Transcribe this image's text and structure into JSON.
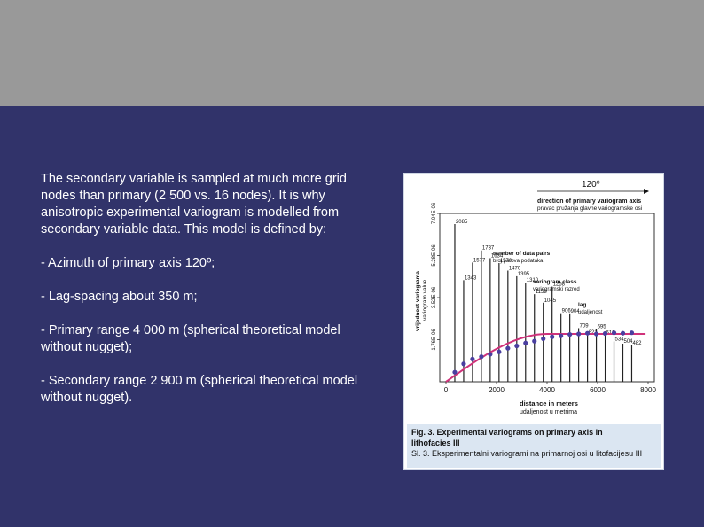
{
  "slide": {
    "intro": "The secondary variable is sampled at much more grid nodes than primary (2 500 vs. 16 nodes). It is why anisotropic experimental variogram is modelled from secondary variable data. This model is defined by:",
    "bullets": [
      "- Azimuth of primary axis 120º;",
      "- Lag-spacing about 350 m;",
      "- Primary range 4 000 m (spherical theoretical model without nugget);",
      "- Secondary range 2 900 m (spherical theoretical model without nugget)."
    ]
  },
  "figure": {
    "caption_line1": "Fig. 3. Experimental variograms on primary axis in",
    "caption_line2": "lithofacies III",
    "caption_line3": "Sl. 3. Eksperimentalni variogrami na primarnoj osi u litofacijesu III"
  },
  "chart_data": {
    "type": "scatter",
    "title": "",
    "azimuth_label": "120⁰",
    "azimuth_caption": "direction of primary variogram axis",
    "azimuth_caption_hr": "pravac pružanja glavne variogramske osi",
    "xlabel": "distance in meters",
    "xlabel_hr": "udaljenost u metrima",
    "ylabel": "variogram value",
    "ylabel_hr": "vrijednost variograma",
    "xlim": [
      0,
      8000
    ],
    "xticks": [
      0,
      2000,
      4000,
      6000,
      8000
    ],
    "ylim": [
      0,
      7.04e-06
    ],
    "ytick_labels": [
      "1.76E-06",
      "3.52E-06",
      "5.28E-06",
      "7.04E-06"
    ],
    "ytick_values": [
      1.76e-06,
      3.52e-06,
      5.28e-06,
      7.04e-06
    ],
    "annotations": {
      "pairs_en": "number of data pairs",
      "pairs_hr": "broj parova podataka",
      "class_en": "variogram class",
      "class_hr": "variogramski razred",
      "lag_en": "lag",
      "lag_hr": "udaljenost"
    },
    "lag_classes": [
      {
        "x": 350,
        "pairs": 2085
      },
      {
        "x": 700,
        "pairs": 1343
      },
      {
        "x": 1050,
        "pairs": 1577
      },
      {
        "x": 1400,
        "pairs": 1737
      },
      {
        "x": 1750,
        "pairs": 1634
      },
      {
        "x": 2100,
        "pairs": 1570
      },
      {
        "x": 2450,
        "pairs": 1470
      },
      {
        "x": 2800,
        "pairs": 1395
      },
      {
        "x": 3150,
        "pairs": 1310
      },
      {
        "x": 3500,
        "pairs": 1158
      },
      {
        "x": 3850,
        "pairs": 1045
      },
      {
        "x": 4200,
        "pairs": 1258
      },
      {
        "x": 4550,
        "pairs": 906
      },
      {
        "x": 4900,
        "pairs": 904
      },
      {
        "x": 5250,
        "pairs": 709
      },
      {
        "x": 5600,
        "pairs": 621
      },
      {
        "x": 5950,
        "pairs": 695
      },
      {
        "x": 6300,
        "pairs": 613
      },
      {
        "x": 6650,
        "pairs": 534
      },
      {
        "x": 7000,
        "pairs": 504
      },
      {
        "x": 7350,
        "pairs": 482
      }
    ],
    "series": [
      {
        "marker_color": "#4a3fa0",
        "x": [
          350,
          700,
          1050,
          1400,
          1750,
          2100,
          2450,
          2800,
          3150,
          3500,
          3850,
          4200,
          4550,
          4900,
          5250,
          5600,
          5950,
          6300,
          6650,
          7000,
          7350
        ],
        "y": [
          4e-07,
          7.5e-07,
          9.5e-07,
          1.05e-06,
          1.15e-06,
          1.25e-06,
          1.4e-06,
          1.5e-06,
          1.62e-06,
          1.7e-06,
          1.8e-06,
          1.88e-06,
          1.92e-06,
          1.98e-06,
          2e-06,
          2.03e-06,
          2e-06,
          2.02e-06,
          2.05e-06,
          2.03e-06,
          2.05e-06
        ]
      },
      {
        "model": "spherical",
        "color": "#d0327a",
        "sill": 2e-06,
        "range": 4000,
        "x_end": 7900
      }
    ],
    "bar_color": "#222222"
  }
}
